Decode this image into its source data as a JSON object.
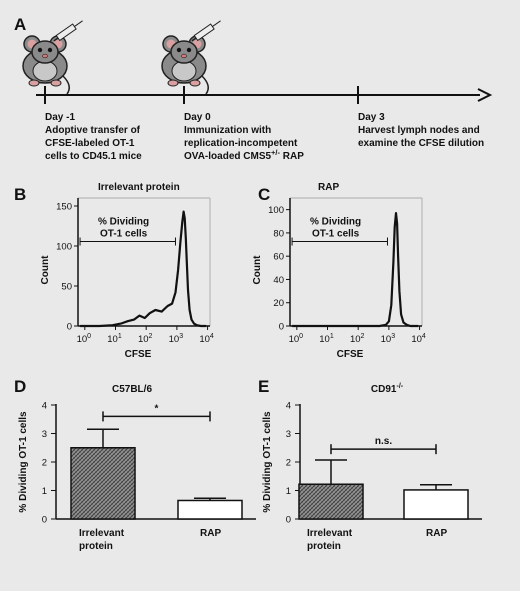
{
  "timeline": {
    "label": "A",
    "events": [
      {
        "day": "Day -1",
        "lines": [
          "Adoptive transfer of",
          "CFSE-labeled OT-1",
          "cells to CD45.1 mice"
        ],
        "has_mouse": true
      },
      {
        "day": "Day 0",
        "lines": [
          "Immunization with",
          "replication-incompetent",
          "OVA-loaded CMS5"
        ],
        "superscript": "+/-",
        "line3_suffix": " RAP",
        "has_mouse": true
      },
      {
        "day": "Day 3",
        "lines": [
          "Harvest lymph nodes and",
          "examine the CFSE dilution"
        ],
        "has_mouse": false
      }
    ]
  },
  "chart_data": [
    {
      "id": "B",
      "type": "line",
      "title": "Irrelevant protein",
      "xlabel": "CFSE",
      "ylabel": "Count",
      "x_scale": "log",
      "xlim": [
        0.6,
        12000
      ],
      "ylim": [
        0,
        160
      ],
      "yticks": [
        0,
        50,
        100,
        150
      ],
      "xticks": [
        {
          "base": "10",
          "exp": "0",
          "value": 1
        },
        {
          "base": "10",
          "exp": "1",
          "value": 10
        },
        {
          "base": "10",
          "exp": "2",
          "value": 100
        },
        {
          "base": "10",
          "exp": "3",
          "value": 1000
        },
        {
          "base": "10",
          "exp": "4",
          "value": 10000
        }
      ],
      "gate_label": [
        "% Dividing",
        "OT-1 cells"
      ],
      "gate_range": [
        0.7,
        900
      ],
      "series": [
        {
          "x": [
            0.7,
            3,
            8,
            15,
            25,
            40,
            60,
            90,
            130,
            200,
            320,
            500,
            700,
            900,
            1100,
            1300,
            1500,
            1650,
            1800,
            1950,
            2100,
            2300,
            2600,
            3000,
            3600,
            4500,
            6000,
            9000
          ],
          "y": [
            0,
            0,
            1,
            3,
            6,
            8,
            13,
            10,
            16,
            20,
            18,
            25,
            28,
            42,
            70,
            105,
            130,
            143,
            135,
            110,
            80,
            45,
            20,
            8,
            3,
            1,
            0,
            0
          ]
        }
      ]
    },
    {
      "id": "C",
      "type": "line",
      "title": "RAP",
      "xlabel": "CFSE",
      "ylabel": "Count",
      "x_scale": "log",
      "xlim": [
        0.6,
        12000
      ],
      "ylim": [
        0,
        110
      ],
      "yticks": [
        0,
        20,
        40,
        60,
        80,
        100
      ],
      "xticks": [
        {
          "base": "10",
          "exp": "0",
          "value": 1
        },
        {
          "base": "10",
          "exp": "1",
          "value": 10
        },
        {
          "base": "10",
          "exp": "2",
          "value": 100
        },
        {
          "base": "10",
          "exp": "3",
          "value": 1000
        },
        {
          "base": "10",
          "exp": "4",
          "value": 10000
        }
      ],
      "gate_label": [
        "% Dividing",
        "OT-1 cells"
      ],
      "gate_range": [
        0.7,
        900
      ],
      "series": [
        {
          "x": [
            0.7,
            100,
            500,
            800,
            1000,
            1200,
            1400,
            1550,
            1700,
            1850,
            2000,
            2200,
            2500,
            3000,
            3800,
            5000,
            9000
          ],
          "y": [
            0,
            0,
            0,
            1,
            4,
            18,
            55,
            85,
            97,
            88,
            60,
            30,
            10,
            3,
            1,
            0,
            0
          ]
        }
      ]
    },
    {
      "id": "D",
      "type": "bar",
      "title": "C57BL/6",
      "ylabel": "% Dividing OT-1 cells",
      "ylim": [
        0,
        4
      ],
      "yticks": [
        0,
        1,
        2,
        3,
        4
      ],
      "categories": [
        [
          "Irrelevant",
          "protein"
        ],
        [
          "RAP"
        ]
      ],
      "values": [
        2.5,
        0.65
      ],
      "errors": [
        0.65,
        0.08
      ],
      "fills": [
        "hatched",
        "white"
      ],
      "significance": "*",
      "sig_level": 3.6
    },
    {
      "id": "E",
      "type": "bar",
      "title": "CD91",
      "title_superscript": "-/-",
      "ylabel": "% Dividing OT-1 cells",
      "ylim": [
        0,
        4
      ],
      "yticks": [
        0,
        1,
        2,
        3,
        4
      ],
      "categories": [
        [
          "Irrelevant",
          "protein"
        ],
        [
          "RAP"
        ]
      ],
      "values": [
        1.22,
        1.02
      ],
      "errors": [
        0.85,
        0.18
      ],
      "fills": [
        "hatched",
        "white"
      ],
      "significance": "n.s.",
      "sig_level": 2.45
    }
  ]
}
